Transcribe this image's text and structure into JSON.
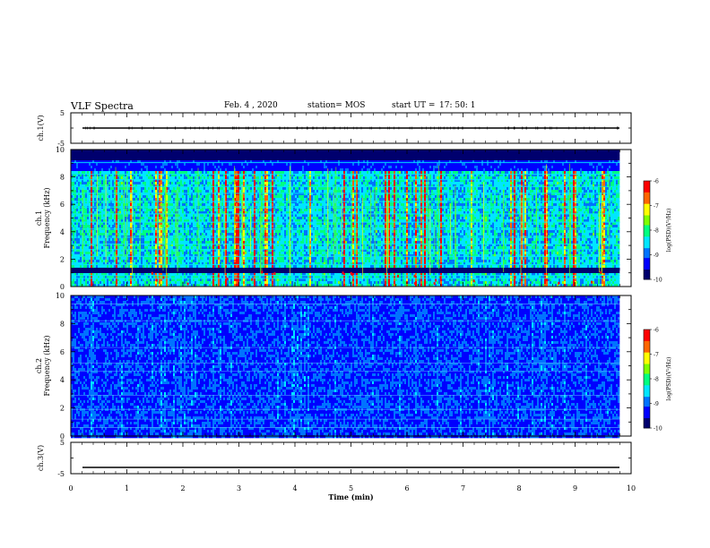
{
  "header": {
    "title": "VLF Spectra",
    "date": "Feb. 4  , 2020",
    "station": "station= MOS",
    "start_label": "start  UT  =",
    "start_time": "17: 50: 1"
  },
  "chart_data": [
    {
      "type": "line",
      "panel": "ch1-waveform",
      "ylabel": "ch.1(V)",
      "ytick_labels": [
        "5",
        "-5"
      ],
      "ylim": [
        -5,
        5
      ],
      "x": [
        0,
        10
      ],
      "series": [
        {
          "values": [
            0,
            0
          ]
        }
      ]
    },
    {
      "type": "heatmap",
      "panel": "ch1-spectrogram",
      "ylabel": "ch.1\nFrequency (kHz)",
      "ytick_labels": [
        "0",
        "2",
        "4",
        "6",
        "8",
        "10"
      ],
      "ylim": [
        0,
        10
      ],
      "xlim": [
        0,
        9.8
      ],
      "colorbar": {
        "label": "log(PSD)(V²/Hz)",
        "tick_labels": [
          "-6",
          "-7",
          "-8",
          "-9",
          "-10"
        ],
        "range": [
          -10,
          -6
        ]
      },
      "description": "strong broadband VLF sferics with horizontal tone lines; energy mostly below 9.3 kHz"
    },
    {
      "type": "heatmap",
      "panel": "ch2-spectrogram",
      "ylabel": "ch.2\nFrequency (kHz)",
      "ytick_labels": [
        "0",
        "2",
        "4",
        "6",
        "8",
        "10"
      ],
      "ylim": [
        0,
        10
      ],
      "xlim": [
        0,
        9.8
      ],
      "colorbar": {
        "label": "log(PSD)(V²/Hz)",
        "tick_labels": [
          "-6",
          "-7",
          "-8",
          "-9",
          "-10"
        ],
        "range": [
          -10,
          -6
        ]
      },
      "description": "weak background noise with faint horizontal lines"
    },
    {
      "type": "line",
      "panel": "ch3-waveform",
      "ylabel": "ch.3(V)",
      "ytick_labels": [
        "5",
        "-5"
      ],
      "ylim": [
        -5,
        5
      ],
      "x": [
        0,
        10
      ],
      "series": [
        {
          "values": [
            -3,
            -3
          ]
        }
      ]
    }
  ],
  "xaxis": {
    "label": "Time  (min)",
    "ticks": [
      0,
      1,
      2,
      3,
      4,
      5,
      6,
      7,
      8,
      9,
      10
    ]
  },
  "colors": {
    "colormap": [
      "#00006e",
      "#0000ff",
      "#0073ff",
      "#00e6ff",
      "#00ff80",
      "#7fff00",
      "#ffff00",
      "#ff6600",
      "#ff0000",
      "#ffffff"
    ]
  }
}
